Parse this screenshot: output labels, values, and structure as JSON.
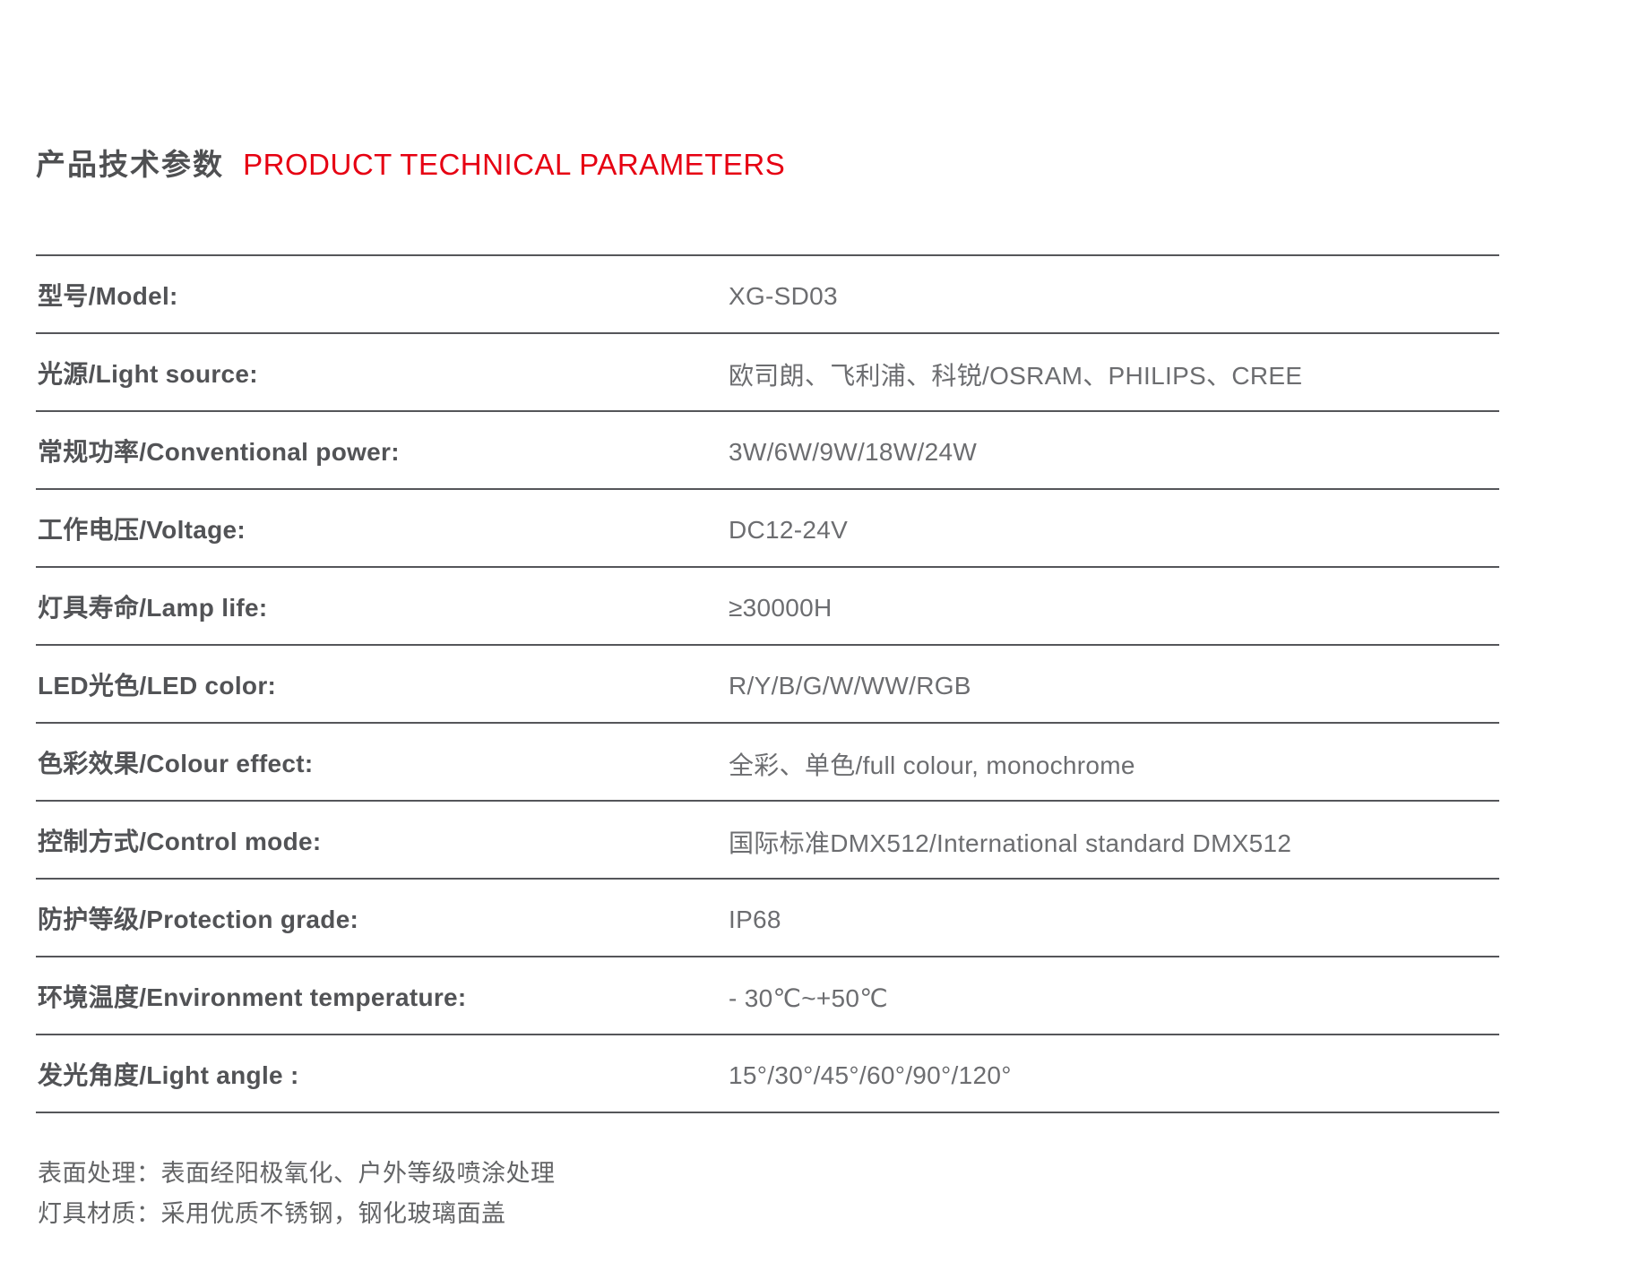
{
  "header": {
    "title_zh": "产品技术参数",
    "title_en": "PRODUCT TECHNICAL PARAMETERS"
  },
  "colors": {
    "accent_red": "#e60012",
    "label_gray": "#525356",
    "value_gray": "#6c6d70",
    "rule_gray": "#55565a"
  },
  "table": {
    "rows": [
      {
        "label": "型号/Model:",
        "value": "XG-SD03"
      },
      {
        "label": "光源/Light source:",
        "value": "欧司朗、飞利浦、科锐/OSRAM、PHILIPS、CREE"
      },
      {
        "label": "常规功率/Conventional power:",
        "value": "3W/6W/9W/18W/24W"
      },
      {
        "label": "工作电压/Voltage:",
        "value": "DC12-24V"
      },
      {
        "label": "灯具寿命/Lamp life:",
        "value": "≥30000H"
      },
      {
        "label": "LED光色/LED color:",
        "value": "R/Y/B/G/W/WW/RGB"
      },
      {
        "label": "色彩效果/Colour effect:",
        "value": "全彩、单色/full colour, monochrome"
      },
      {
        "label": "控制方式/Control mode:",
        "value": "国际标准DMX512/International standard DMX512"
      },
      {
        "label": "防护等级/Protection grade:",
        "value": "IP68"
      },
      {
        "label": "环境温度/Environment temperature:",
        "value": " - 30℃~+50℃"
      },
      {
        "label": "发光角度/Light angle :",
        "value": "15°/30°/45°/60°/90°/120°"
      }
    ]
  },
  "notes": [
    "表面处理：表面经阳极氧化、户外等级喷涂处理",
    "灯具材质：采用优质不锈钢，钢化玻璃面盖"
  ]
}
